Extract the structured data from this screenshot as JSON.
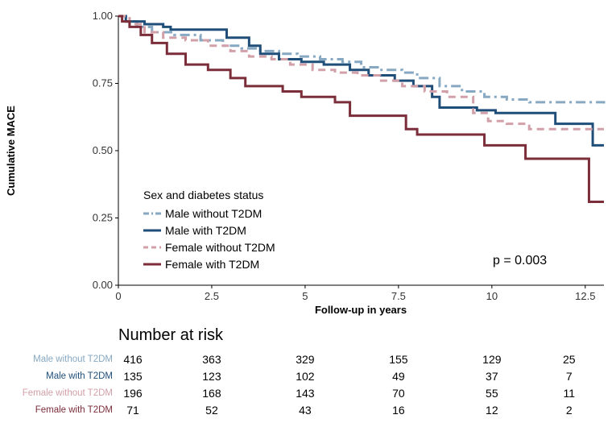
{
  "chart_data": {
    "type": "line",
    "subtype": "kaplan-meier step",
    "xlabel": "Follow-up in years",
    "ylabel": "Cumulative MACE",
    "xlim": [
      0,
      13
    ],
    "ylim": [
      0,
      1
    ],
    "xticks": [
      0,
      2.5,
      5,
      7.5,
      10,
      12.5
    ],
    "xtick_labels": [
      "0",
      "2.5",
      "5",
      "7.5",
      "10",
      "12.5"
    ],
    "yticks": [
      0,
      0.25,
      0.5,
      0.75,
      1
    ],
    "ytick_labels": [
      "0.00",
      "0.25",
      "0.50",
      "0.75",
      "1.00"
    ],
    "legend_title": "Sex and diabetes status",
    "annotation": "p = 0.003",
    "series": [
      {
        "name": "Male without T2DM",
        "color": "#86a8c2",
        "dash": "dotdash",
        "x": [
          0,
          0.2,
          0.5,
          0.9,
          1.5,
          2.2,
          2.8,
          3.3,
          3.8,
          4.3,
          4.8,
          5.4,
          6.0,
          6.5,
          7.0,
          7.6,
          8.0,
          8.6,
          9.2,
          9.8,
          10.4,
          11.0,
          11.6,
          12.2,
          13.0
        ],
        "y": [
          1.0,
          0.98,
          0.96,
          0.94,
          0.93,
          0.91,
          0.89,
          0.88,
          0.87,
          0.86,
          0.85,
          0.84,
          0.83,
          0.81,
          0.8,
          0.79,
          0.77,
          0.74,
          0.72,
          0.7,
          0.69,
          0.68,
          0.68,
          0.68,
          0.675
        ]
      },
      {
        "name": "Male with T2DM",
        "color": "#1f4e79",
        "dash": "solid",
        "x": [
          0,
          0.2,
          0.7,
          1.2,
          1.4,
          2.4,
          2.9,
          3.5,
          3.8,
          4.3,
          4.9,
          5.5,
          6.2,
          6.7,
          7.4,
          7.9,
          8.4,
          8.6,
          9.6,
          10.1,
          11.7,
          12.7,
          13.0
        ],
        "y": [
          1.0,
          0.98,
          0.97,
          0.96,
          0.95,
          0.95,
          0.92,
          0.89,
          0.86,
          0.84,
          0.83,
          0.82,
          0.8,
          0.78,
          0.76,
          0.74,
          0.7,
          0.66,
          0.65,
          0.64,
          0.6,
          0.52,
          0.52
        ]
      },
      {
        "name": "Female without T2DM",
        "color": "#d2a0a8",
        "dash": "dash",
        "x": [
          0,
          0.3,
          0.7,
          1.2,
          1.8,
          2.4,
          3.0,
          3.5,
          4.1,
          4.6,
          5.2,
          5.8,
          6.4,
          7.0,
          7.6,
          8.2,
          8.8,
          9.5,
          9.9,
          10.4,
          11.0,
          13.0
        ],
        "y": [
          1.0,
          0.97,
          0.94,
          0.92,
          0.91,
          0.89,
          0.87,
          0.85,
          0.84,
          0.82,
          0.8,
          0.79,
          0.78,
          0.76,
          0.74,
          0.72,
          0.7,
          0.64,
          0.61,
          0.6,
          0.58,
          0.58
        ]
      },
      {
        "name": "Female with T2DM",
        "color": "#7b2d3a",
        "dash": "solid",
        "x": [
          0,
          0.1,
          0.3,
          0.6,
          0.9,
          1.3,
          1.8,
          2.4,
          3.0,
          3.4,
          4.4,
          4.9,
          5.8,
          6.2,
          7.7,
          8.0,
          9.8,
          10.9,
          12.5,
          12.6,
          13.0
        ],
        "y": [
          1.0,
          0.98,
          0.96,
          0.93,
          0.9,
          0.86,
          0.82,
          0.8,
          0.77,
          0.74,
          0.72,
          0.7,
          0.68,
          0.63,
          0.58,
          0.56,
          0.52,
          0.47,
          0.47,
          0.31,
          0.31
        ]
      }
    ]
  },
  "risk_table": {
    "title": "Number at risk",
    "times": [
      "0",
      "2.5",
      "5",
      "7.5",
      "10",
      "12.5"
    ],
    "rows": [
      {
        "label": "Male without T2DM",
        "color": "#86a8c2",
        "values": [
          "416",
          "363",
          "329",
          "155",
          "129",
          "25"
        ]
      },
      {
        "label": "Male with T2DM",
        "color": "#1f4e79",
        "values": [
          "135",
          "123",
          "102",
          "49",
          "37",
          "7"
        ]
      },
      {
        "label": "Female without T2DM",
        "color": "#d2a0a8",
        "values": [
          "196",
          "168",
          "143",
          "70",
          "55",
          "11"
        ]
      },
      {
        "label": "Female with T2DM",
        "color": "#7b2d3a",
        "values": [
          "71",
          "52",
          "43",
          "16",
          "12",
          "2"
        ]
      }
    ]
  }
}
